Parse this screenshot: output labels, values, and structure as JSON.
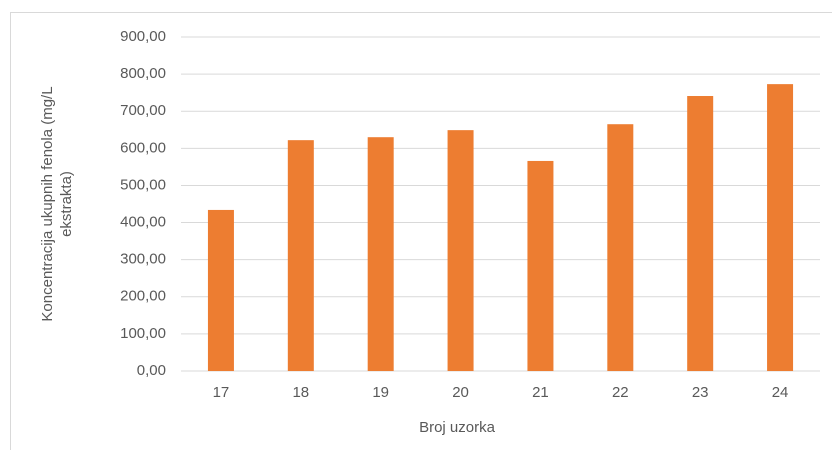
{
  "chart_data": {
    "type": "bar",
    "xlabel": "Broj uzorka",
    "ylabel": [
      "Koncentracija ukupnih fenola (mg/L",
      "ekstrakta)"
    ],
    "categories": [
      "17",
      "18",
      "19",
      "20",
      "21",
      "22",
      "23",
      "24"
    ],
    "values": [
      434,
      622,
      630,
      649,
      566,
      665,
      741,
      773
    ],
    "color": "#ed7d31",
    "ylim": [
      0,
      900
    ],
    "yticks": [
      {
        "value": 0,
        "label": "0,00"
      },
      {
        "value": 100,
        "label": "100,00"
      },
      {
        "value": 200,
        "label": "200,00"
      },
      {
        "value": 300,
        "label": "300,00"
      },
      {
        "value": 400,
        "label": "400,00"
      },
      {
        "value": 500,
        "label": "500,00"
      },
      {
        "value": 600,
        "label": "600,00"
      },
      {
        "value": 700,
        "label": "700,00"
      },
      {
        "value": 800,
        "label": "800,00"
      },
      {
        "value": 900,
        "label": "900,00"
      }
    ],
    "grid": true
  }
}
